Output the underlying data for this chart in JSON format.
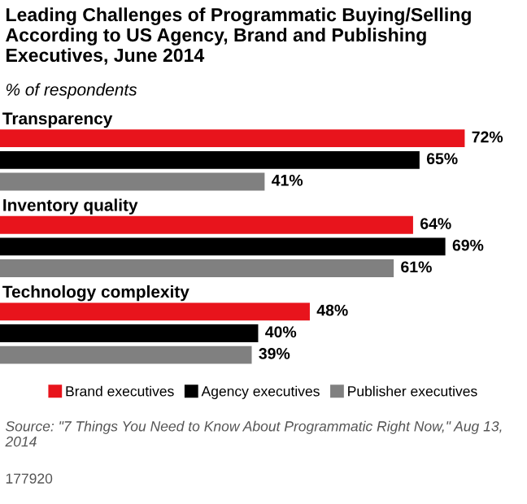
{
  "chart_data": {
    "type": "bar",
    "orientation": "horizontal",
    "title": "Leading Challenges of Programmatic Buying/Selling According to US Agency, Brand and Publishing Executives, June 2014",
    "subtitle": "% of respondents",
    "categories": [
      "Transparency",
      "Inventory quality",
      "Technology complexity"
    ],
    "series": [
      {
        "name": "Brand executives",
        "color": "#e8141c",
        "values": [
          72,
          64,
          48
        ],
        "value_labels": [
          "72%",
          "64%",
          "48%"
        ]
      },
      {
        "name": "Agency executives",
        "color": "#000000",
        "values": [
          65,
          69,
          40
        ],
        "value_labels": [
          "65%",
          "69%",
          "40%"
        ]
      },
      {
        "name": "Publisher executives",
        "color": "#808080",
        "values": [
          41,
          61,
          39
        ],
        "value_labels": [
          "41%",
          "61%",
          "39%"
        ]
      }
    ],
    "legend": "bottom",
    "annotations": [
      "Source: \"7 Things You Need to Know About Programmatic Right Now,\" Aug 13, 2014",
      "177920"
    ]
  }
}
